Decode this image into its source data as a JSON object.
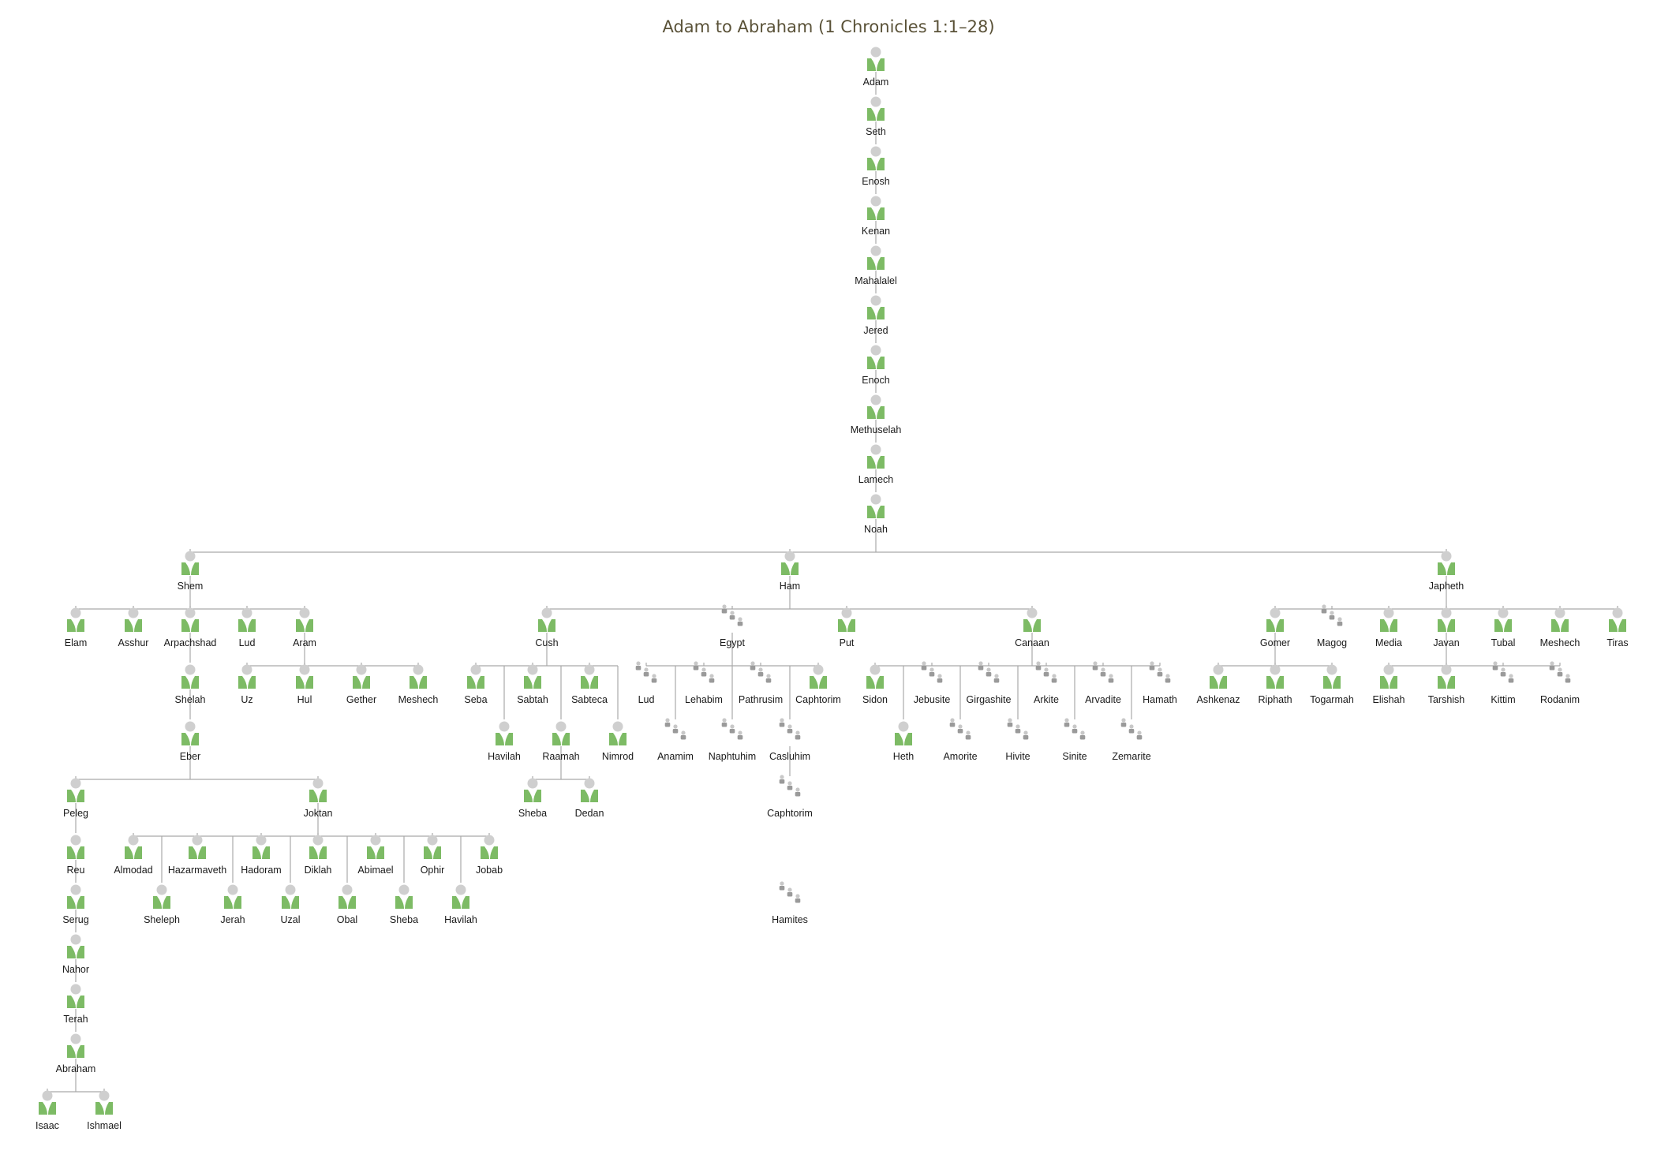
{
  "title": "Adam to Abraham (1 Chronicles 1:1–28)",
  "colors": {
    "person_body": "#7dbb65",
    "person_head": "#cfcfcf",
    "group_head": "#c8c8c8",
    "group_body": "#9a9a9a",
    "connector": "#a9a9a9"
  },
  "icons": {
    "person": "person-icon",
    "group": "people-group-icon"
  },
  "nodes": [
    {
      "id": "adam",
      "label": "Adam",
      "type": "person"
    },
    {
      "id": "seth",
      "label": "Seth",
      "type": "person",
      "parent": "adam"
    },
    {
      "id": "enosh",
      "label": "Enosh",
      "type": "person",
      "parent": "seth"
    },
    {
      "id": "kenan",
      "label": "Kenan",
      "type": "person",
      "parent": "enosh"
    },
    {
      "id": "mahalalel",
      "label": "Mahalalel",
      "type": "person",
      "parent": "kenan"
    },
    {
      "id": "jered",
      "label": "Jered",
      "type": "person",
      "parent": "mahalalel"
    },
    {
      "id": "enoch",
      "label": "Enoch",
      "type": "person",
      "parent": "jered"
    },
    {
      "id": "methuselah",
      "label": "Methuselah",
      "type": "person",
      "parent": "enoch"
    },
    {
      "id": "lamech",
      "label": "Lamech",
      "type": "person",
      "parent": "methuselah"
    },
    {
      "id": "noah",
      "label": "Noah",
      "type": "person",
      "parent": "lamech"
    },
    {
      "id": "shem",
      "label": "Shem",
      "type": "person",
      "parent": "noah"
    },
    {
      "id": "ham",
      "label": "Ham",
      "type": "person",
      "parent": "noah"
    },
    {
      "id": "japheth",
      "label": "Japheth",
      "type": "person",
      "parent": "noah"
    },
    {
      "id": "elam",
      "label": "Elam",
      "type": "person",
      "parent": "shem"
    },
    {
      "id": "asshur",
      "label": "Asshur",
      "type": "person",
      "parent": "shem"
    },
    {
      "id": "arpachshad",
      "label": "Arpachshad",
      "type": "person",
      "parent": "shem"
    },
    {
      "id": "lud1",
      "label": "Lud",
      "type": "person",
      "parent": "shem"
    },
    {
      "id": "aram",
      "label": "Aram",
      "type": "person",
      "parent": "shem"
    },
    {
      "id": "uz",
      "label": "Uz",
      "type": "person",
      "parent": "aram"
    },
    {
      "id": "hul",
      "label": "Hul",
      "type": "person",
      "parent": "aram"
    },
    {
      "id": "gether",
      "label": "Gether",
      "type": "person",
      "parent": "aram"
    },
    {
      "id": "meshech1",
      "label": "Meshech",
      "type": "person",
      "parent": "aram"
    },
    {
      "id": "shelah",
      "label": "Shelah",
      "type": "person",
      "parent": "arpachshad"
    },
    {
      "id": "eber",
      "label": "Eber",
      "type": "person",
      "parent": "shelah"
    },
    {
      "id": "peleg",
      "label": "Peleg",
      "type": "person",
      "parent": "eber"
    },
    {
      "id": "joktan",
      "label": "Joktan",
      "type": "person",
      "parent": "eber"
    },
    {
      "id": "reu",
      "label": "Reu",
      "type": "person",
      "parent": "peleg"
    },
    {
      "id": "serug",
      "label": "Serug",
      "type": "person",
      "parent": "reu"
    },
    {
      "id": "nahor",
      "label": "Nahor",
      "type": "person",
      "parent": "serug"
    },
    {
      "id": "terah",
      "label": "Terah",
      "type": "person",
      "parent": "nahor"
    },
    {
      "id": "abraham",
      "label": "Abraham",
      "type": "person",
      "parent": "terah"
    },
    {
      "id": "isaac",
      "label": "Isaac",
      "type": "person",
      "parent": "abraham"
    },
    {
      "id": "ishmael",
      "label": "Ishmael",
      "type": "person",
      "parent": "abraham"
    },
    {
      "id": "almodad",
      "label": "Almodad",
      "type": "person",
      "parent": "joktan"
    },
    {
      "id": "sheleph",
      "label": "Sheleph",
      "type": "person",
      "parent": "joktan"
    },
    {
      "id": "hazarmaveth",
      "label": "Hazarmaveth",
      "type": "person",
      "parent": "joktan"
    },
    {
      "id": "jerah",
      "label": "Jerah",
      "type": "person",
      "parent": "joktan"
    },
    {
      "id": "hadoram",
      "label": "Hadoram",
      "type": "person",
      "parent": "joktan"
    },
    {
      "id": "uzal",
      "label": "Uzal",
      "type": "person",
      "parent": "joktan"
    },
    {
      "id": "diklah",
      "label": "Diklah",
      "type": "person",
      "parent": "joktan"
    },
    {
      "id": "obal",
      "label": "Obal",
      "type": "person",
      "parent": "joktan"
    },
    {
      "id": "abimael",
      "label": "Abimael",
      "type": "person",
      "parent": "joktan"
    },
    {
      "id": "sheba1",
      "label": "Sheba",
      "type": "person",
      "parent": "joktan"
    },
    {
      "id": "ophir",
      "label": "Ophir",
      "type": "person",
      "parent": "joktan"
    },
    {
      "id": "havilah1",
      "label": "Havilah",
      "type": "person",
      "parent": "joktan"
    },
    {
      "id": "jobab",
      "label": "Jobab",
      "type": "person",
      "parent": "joktan"
    },
    {
      "id": "cush",
      "label": "Cush",
      "type": "person",
      "parent": "ham"
    },
    {
      "id": "egypt",
      "label": "Egypt",
      "type": "group",
      "parent": "ham"
    },
    {
      "id": "put",
      "label": "Put",
      "type": "person",
      "parent": "ham"
    },
    {
      "id": "canaan",
      "label": "Canaan",
      "type": "person",
      "parent": "ham"
    },
    {
      "id": "seba",
      "label": "Seba",
      "type": "person",
      "parent": "cush"
    },
    {
      "id": "havilah2",
      "label": "Havilah",
      "type": "person",
      "parent": "cush"
    },
    {
      "id": "sabtah",
      "label": "Sabtah",
      "type": "person",
      "parent": "cush"
    },
    {
      "id": "raamah",
      "label": "Raamah",
      "type": "person",
      "parent": "cush"
    },
    {
      "id": "sabteca",
      "label": "Sabteca",
      "type": "person",
      "parent": "cush"
    },
    {
      "id": "nimrod",
      "label": "Nimrod",
      "type": "person",
      "parent": "cush"
    },
    {
      "id": "sheba2",
      "label": "Sheba",
      "type": "person",
      "parent": "raamah"
    },
    {
      "id": "dedan",
      "label": "Dedan",
      "type": "person",
      "parent": "raamah"
    },
    {
      "id": "lud2",
      "label": "Lud",
      "type": "group",
      "parent": "egypt"
    },
    {
      "id": "anamim",
      "label": "Anamim",
      "type": "group",
      "parent": "egypt"
    },
    {
      "id": "lehabim",
      "label": "Lehabim",
      "type": "group",
      "parent": "egypt"
    },
    {
      "id": "naphtuhim",
      "label": "Naphtuhim",
      "type": "group",
      "parent": "egypt"
    },
    {
      "id": "pathrusim",
      "label": "Pathrusim",
      "type": "group",
      "parent": "egypt"
    },
    {
      "id": "casluhim",
      "label": "Casluhim",
      "type": "group",
      "parent": "egypt"
    },
    {
      "id": "caphtorim1",
      "label": "Caphtorim",
      "type": "person",
      "parent": "egypt"
    },
    {
      "id": "caphtorim2",
      "label": "Caphtorim",
      "type": "group",
      "parent": "casluhim"
    },
    {
      "id": "hamites",
      "label": "Hamites",
      "type": "group"
    },
    {
      "id": "sidon",
      "label": "Sidon",
      "type": "person",
      "parent": "canaan"
    },
    {
      "id": "heth",
      "label": "Heth",
      "type": "person",
      "parent": "canaan"
    },
    {
      "id": "jebusite",
      "label": "Jebusite",
      "type": "group",
      "parent": "canaan"
    },
    {
      "id": "amorite",
      "label": "Amorite",
      "type": "group",
      "parent": "canaan"
    },
    {
      "id": "girgashite",
      "label": "Girgashite",
      "type": "group",
      "parent": "canaan"
    },
    {
      "id": "hivite",
      "label": "Hivite",
      "type": "group",
      "parent": "canaan"
    },
    {
      "id": "arkite",
      "label": "Arkite",
      "type": "group",
      "parent": "canaan"
    },
    {
      "id": "sinite",
      "label": "Sinite",
      "type": "group",
      "parent": "canaan"
    },
    {
      "id": "arvadite",
      "label": "Arvadite",
      "type": "group",
      "parent": "canaan"
    },
    {
      "id": "zemarite",
      "label": "Zemarite",
      "type": "group",
      "parent": "canaan"
    },
    {
      "id": "hamath",
      "label": "Hamath",
      "type": "group",
      "parent": "canaan"
    },
    {
      "id": "gomer",
      "label": "Gomer",
      "type": "person",
      "parent": "japheth"
    },
    {
      "id": "magog",
      "label": "Magog",
      "type": "group",
      "parent": "japheth"
    },
    {
      "id": "media",
      "label": "Media",
      "type": "person",
      "parent": "japheth"
    },
    {
      "id": "javan",
      "label": "Javan",
      "type": "person",
      "parent": "japheth"
    },
    {
      "id": "tubal",
      "label": "Tubal",
      "type": "person",
      "parent": "japheth"
    },
    {
      "id": "meshech2",
      "label": "Meshech",
      "type": "person",
      "parent": "japheth"
    },
    {
      "id": "tiras",
      "label": "Tiras",
      "type": "person",
      "parent": "japheth"
    },
    {
      "id": "ashkenaz",
      "label": "Ashkenaz",
      "type": "person",
      "parent": "gomer"
    },
    {
      "id": "riphath",
      "label": "Riphath",
      "type": "person",
      "parent": "gomer"
    },
    {
      "id": "togarmah",
      "label": "Togarmah",
      "type": "person",
      "parent": "gomer"
    },
    {
      "id": "elishah",
      "label": "Elishah",
      "type": "person",
      "parent": "javan"
    },
    {
      "id": "tarshish",
      "label": "Tarshish",
      "type": "person",
      "parent": "javan"
    },
    {
      "id": "kittim",
      "label": "Kittim",
      "type": "group",
      "parent": "javan"
    },
    {
      "id": "rodanim",
      "label": "Rodanim",
      "type": "group",
      "parent": "javan"
    }
  ]
}
